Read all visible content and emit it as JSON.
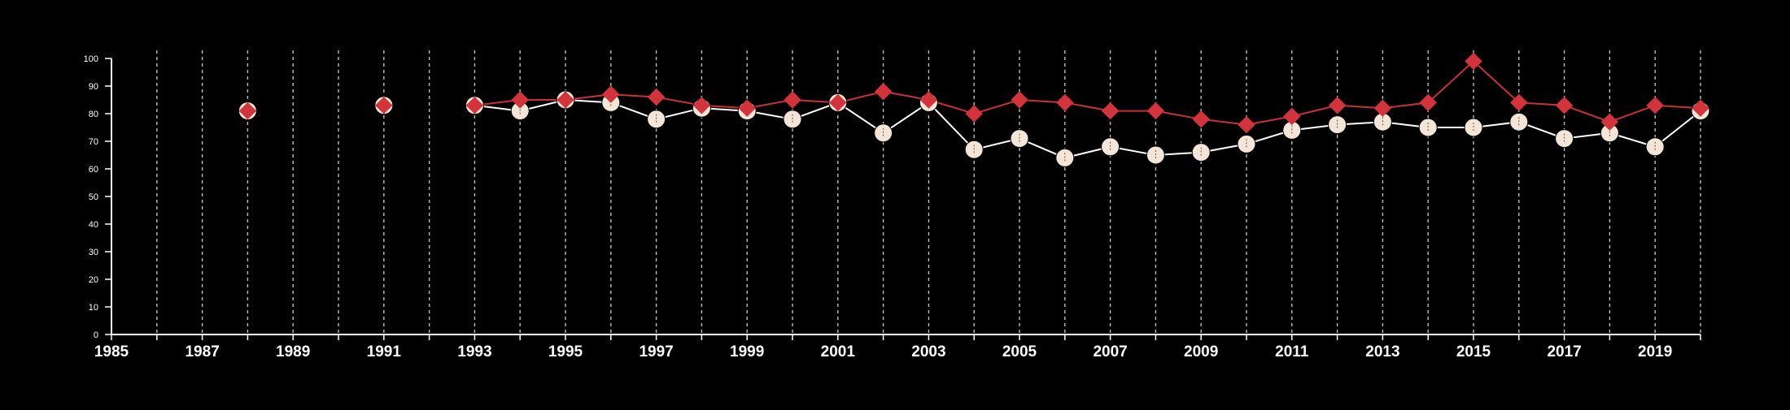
{
  "chart_data": {
    "type": "line",
    "title": "",
    "xlabel": "",
    "ylabel": "",
    "xlim": [
      1985,
      2020
    ],
    "ylim": [
      0,
      100
    ],
    "x_ticks": [
      "1985",
      "1987",
      "1989",
      "1991",
      "1993",
      "1995",
      "1997",
      "1999",
      "2001",
      "2003",
      "2005",
      "2007",
      "2009",
      "2011",
      "2013",
      "2015",
      "2017",
      "2019"
    ],
    "y_ticks": [
      "0",
      "10",
      "20",
      "30",
      "40",
      "50",
      "60",
      "70",
      "80",
      "90",
      "100"
    ],
    "grid": "vertical dashed lines at every year",
    "legend": "none",
    "series": [
      {
        "marker": "circle",
        "color": "#f3e6d6",
        "line_color": "#ffffff",
        "points": [
          [
            1988,
            81
          ],
          [
            1991,
            83
          ],
          [
            1993,
            83
          ],
          [
            1994,
            81
          ],
          [
            1995,
            85
          ],
          [
            1996,
            84
          ],
          [
            1997,
            78
          ],
          [
            1998,
            82
          ],
          [
            1999,
            81
          ],
          [
            2000,
            78
          ],
          [
            2001,
            84
          ],
          [
            2002,
            73
          ],
          [
            2003,
            84
          ],
          [
            2004,
            67
          ],
          [
            2005,
            71
          ],
          [
            2006,
            64
          ],
          [
            2007,
            68
          ],
          [
            2008,
            65
          ],
          [
            2009,
            66
          ],
          [
            2010,
            69
          ],
          [
            2011,
            74
          ],
          [
            2012,
            76
          ],
          [
            2013,
            77
          ],
          [
            2014,
            75
          ],
          [
            2015,
            75
          ],
          [
            2016,
            77
          ],
          [
            2017,
            71
          ],
          [
            2018,
            73
          ],
          [
            2019,
            68
          ],
          [
            2020,
            81
          ]
        ]
      },
      {
        "marker": "diamond",
        "color": "#d3333a",
        "line_color": "#c8313a",
        "points": [
          [
            1988,
            81
          ],
          [
            1991,
            83
          ],
          [
            1993,
            83
          ],
          [
            1994,
            85
          ],
          [
            1995,
            85
          ],
          [
            1996,
            87
          ],
          [
            1997,
            86
          ],
          [
            1998,
            83
          ],
          [
            1999,
            82
          ],
          [
            2000,
            85
          ],
          [
            2001,
            84
          ],
          [
            2002,
            88
          ],
          [
            2003,
            85
          ],
          [
            2004,
            80
          ],
          [
            2005,
            85
          ],
          [
            2006,
            84
          ],
          [
            2007,
            81
          ],
          [
            2008,
            81
          ],
          [
            2009,
            78
          ],
          [
            2010,
            76
          ],
          [
            2011,
            79
          ],
          [
            2012,
            83
          ],
          [
            2013,
            82
          ],
          [
            2014,
            84
          ],
          [
            2015,
            99
          ],
          [
            2016,
            84
          ],
          [
            2017,
            83
          ],
          [
            2018,
            77
          ],
          [
            2019,
            83
          ],
          [
            2020,
            82
          ]
        ]
      }
    ]
  }
}
